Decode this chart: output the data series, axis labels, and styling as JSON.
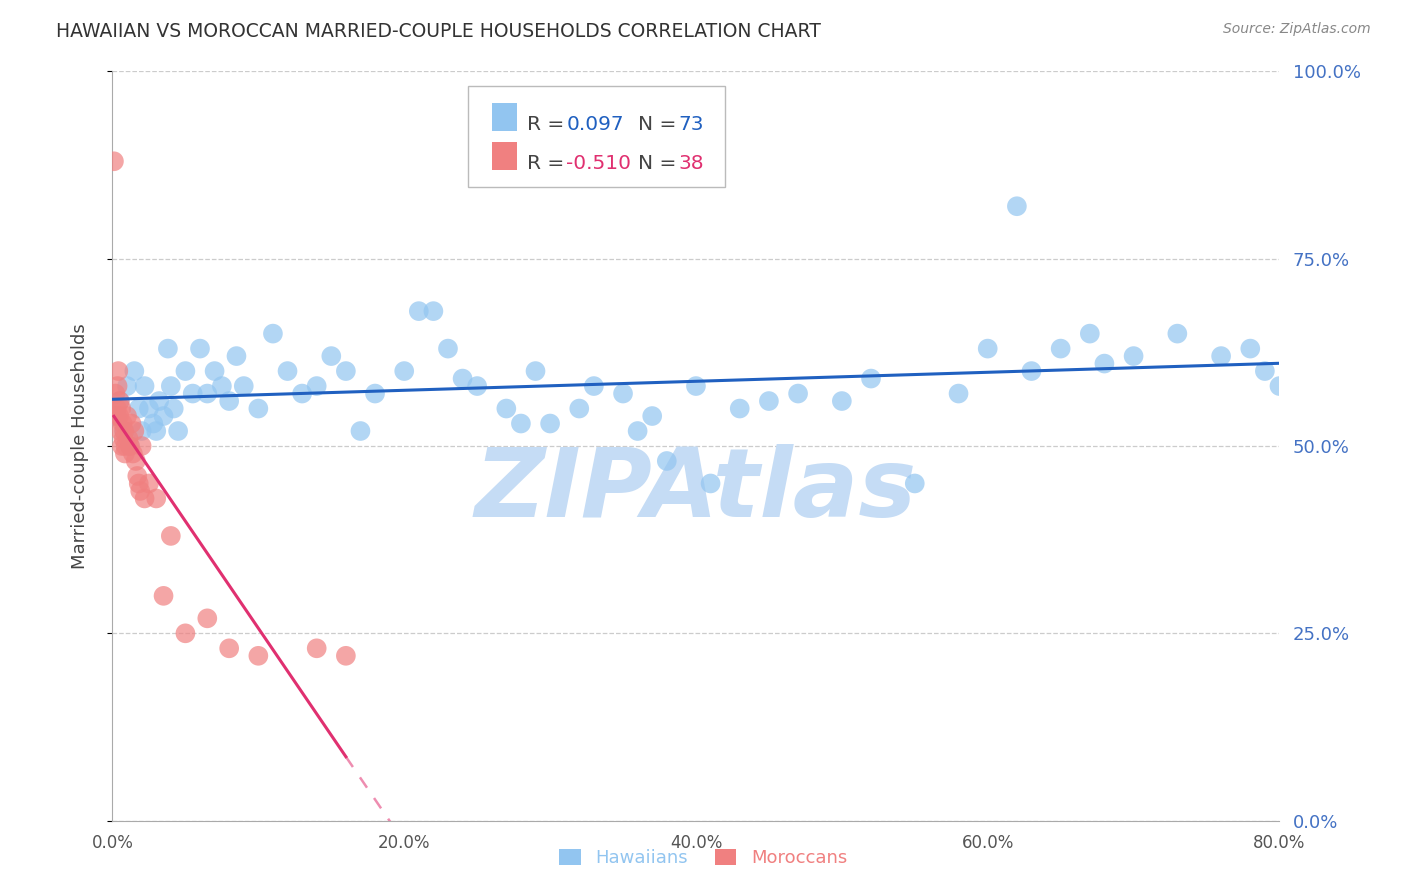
{
  "title": "HAWAIIAN VS MOROCCAN MARRIED-COUPLE HOUSEHOLDS CORRELATION CHART",
  "source": "Source: ZipAtlas.com",
  "xlabel_vals": [
    0.0,
    20.0,
    40.0,
    60.0,
    80.0
  ],
  "ylabel_vals": [
    0.0,
    25.0,
    50.0,
    75.0,
    100.0
  ],
  "xlim": [
    0.0,
    80.0
  ],
  "ylim": [
    0.0,
    100.0
  ],
  "ylabel": "Married-couple Households",
  "legend_label1": "Hawaiians",
  "legend_label2": "Moroccans",
  "R1": 0.097,
  "N1": 73,
  "R2": -0.51,
  "N2": 38,
  "color_blue": "#92C5F0",
  "color_pink": "#F08080",
  "color_line_blue": "#2060C0",
  "color_line_pink": "#E03070",
  "watermark": "ZIPAtlas",
  "watermark_color": "#C5DCF5",
  "background_color": "#FFFFFF",
  "grid_color": "#CCCCCC",
  "title_color": "#333333",
  "right_tick_color": "#4472C4",
  "hawaiians_x": [
    0.3,
    0.5,
    0.8,
    1.0,
    1.2,
    1.5,
    1.8,
    2.0,
    2.2,
    2.5,
    2.8,
    3.0,
    3.2,
    3.5,
    3.8,
    4.0,
    4.2,
    4.5,
    5.0,
    5.5,
    6.0,
    6.5,
    7.0,
    7.5,
    8.0,
    8.5,
    9.0,
    10.0,
    11.0,
    12.0,
    13.0,
    14.0,
    15.0,
    16.0,
    17.0,
    18.0,
    20.0,
    21.0,
    22.0,
    23.0,
    24.0,
    25.0,
    27.0,
    28.0,
    29.0,
    30.0,
    32.0,
    33.0,
    35.0,
    36.0,
    37.0,
    38.0,
    40.0,
    41.0,
    43.0,
    45.0,
    47.0,
    50.0,
    52.0,
    55.0,
    58.0,
    60.0,
    62.0,
    63.0,
    65.0,
    67.0,
    68.0,
    70.0,
    73.0,
    76.0,
    78.0,
    79.0,
    80.0
  ],
  "hawaiians_y": [
    54.0,
    56.0,
    52.0,
    58.0,
    50.0,
    60.0,
    55.0,
    52.0,
    58.0,
    55.0,
    53.0,
    52.0,
    56.0,
    54.0,
    63.0,
    58.0,
    55.0,
    52.0,
    60.0,
    57.0,
    63.0,
    57.0,
    60.0,
    58.0,
    56.0,
    62.0,
    58.0,
    55.0,
    65.0,
    60.0,
    57.0,
    58.0,
    62.0,
    60.0,
    52.0,
    57.0,
    60.0,
    68.0,
    68.0,
    63.0,
    59.0,
    58.0,
    55.0,
    53.0,
    60.0,
    53.0,
    55.0,
    58.0,
    57.0,
    52.0,
    54.0,
    48.0,
    58.0,
    45.0,
    55.0,
    56.0,
    57.0,
    56.0,
    59.0,
    45.0,
    57.0,
    63.0,
    82.0,
    60.0,
    63.0,
    65.0,
    61.0,
    62.0,
    65.0,
    62.0,
    63.0,
    60.0,
    58.0
  ],
  "moroccans_x": [
    0.1,
    0.2,
    0.25,
    0.3,
    0.35,
    0.4,
    0.45,
    0.5,
    0.55,
    0.6,
    0.65,
    0.7,
    0.75,
    0.8,
    0.85,
    0.9,
    1.0,
    1.1,
    1.2,
    1.3,
    1.4,
    1.5,
    1.6,
    1.7,
    1.8,
    1.9,
    2.0,
    2.2,
    2.5,
    3.0,
    3.5,
    4.0,
    5.0,
    6.5,
    8.0,
    10.0,
    14.0,
    16.0
  ],
  "moroccans_y": [
    88.0,
    57.0,
    54.0,
    55.0,
    58.0,
    60.0,
    54.0,
    56.0,
    52.0,
    55.0,
    50.0,
    53.0,
    51.0,
    52.0,
    49.0,
    50.0,
    54.0,
    51.0,
    50.0,
    53.0,
    49.0,
    52.0,
    48.0,
    46.0,
    45.0,
    44.0,
    50.0,
    43.0,
    45.0,
    43.0,
    30.0,
    38.0,
    25.0,
    27.0,
    23.0,
    22.0,
    23.0,
    22.0
  ]
}
